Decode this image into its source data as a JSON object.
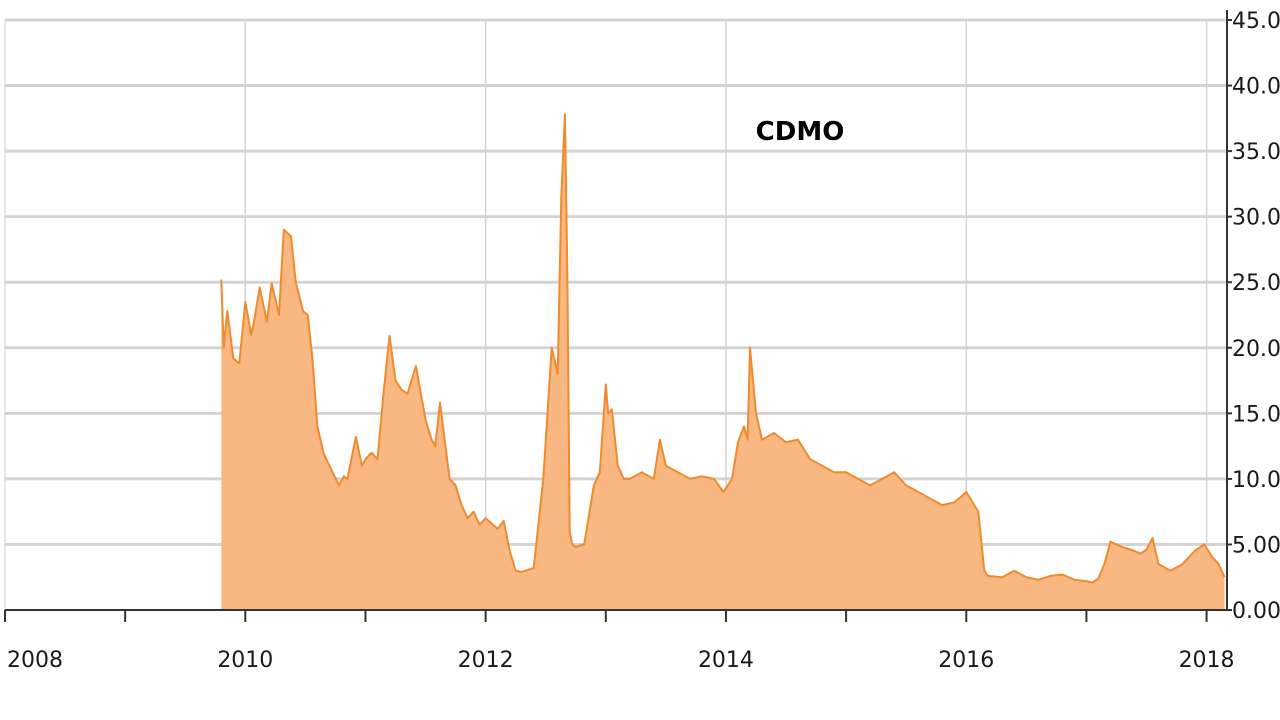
{
  "chart_data": {
    "type": "area",
    "title": "CDMO",
    "xlabel": "",
    "ylabel": "",
    "xlim": [
      2008.0,
      2018.17
    ],
    "ylim": [
      0,
      45
    ],
    "grid": true,
    "y_ticks": [
      "0.00",
      "5.00",
      "10.00",
      "15.00",
      "20.00",
      "25.00",
      "30.00",
      "35.00",
      "40.00",
      "45.00"
    ],
    "x_ticks": [
      "2008",
      "2010",
      "2012",
      "2014",
      "2016",
      "2018"
    ],
    "colors": {
      "fill": "#f9b781",
      "line": "#f08a2e",
      "grid": "#d4d4d4",
      "axis": "#333333"
    },
    "series": [
      {
        "x": [
          2009.8,
          2009.82,
          2009.85,
          2009.9,
          2009.95,
          2010.0,
          2010.05,
          2010.08,
          2010.12,
          2010.18,
          2010.22,
          2010.28,
          2010.32,
          2010.38,
          2010.42,
          2010.48,
          2010.52,
          2010.56,
          2010.6,
          2010.65,
          2010.7,
          2010.78,
          2010.82,
          2010.85,
          2010.92,
          2010.97,
          2011.0,
          2011.05,
          2011.1,
          2011.15,
          2011.2,
          2011.25,
          2011.3,
          2011.35,
          2011.42,
          2011.5,
          2011.55,
          2011.58,
          2011.62,
          2011.7,
          2011.75,
          2011.8,
          2011.85,
          2011.9,
          2011.95,
          2012.0,
          2012.1,
          2012.15,
          2012.2,
          2012.25,
          2012.3,
          2012.4,
          2012.48,
          2012.55,
          2012.6,
          2012.63,
          2012.66,
          2012.68,
          2012.7,
          2012.72,
          2012.75,
          2012.78,
          2012.82,
          2012.9,
          2012.95,
          2013.0,
          2013.02,
          2013.05,
          2013.1,
          2013.15,
          2013.2,
          2013.3,
          2013.4,
          2013.45,
          2013.5,
          2013.6,
          2013.7,
          2013.8,
          2013.9,
          2013.98,
          2014.05,
          2014.1,
          2014.15,
          2014.18,
          2014.2,
          2014.25,
          2014.3,
          2014.4,
          2014.5,
          2014.6,
          2014.7,
          2014.8,
          2014.9,
          2015.0,
          2015.1,
          2015.2,
          2015.3,
          2015.4,
          2015.5,
          2015.6,
          2015.7,
          2015.8,
          2015.9,
          2016.0,
          2016.1,
          2016.15,
          2016.18,
          2016.3,
          2016.4,
          2016.5,
          2016.6,
          2016.7,
          2016.8,
          2016.9,
          2017.0,
          2017.05,
          2017.1,
          2017.15,
          2017.2,
          2017.3,
          2017.4,
          2017.45,
          2017.5,
          2017.55,
          2017.6,
          2017.7,
          2017.8,
          2017.9,
          2017.98,
          2018.05,
          2018.1,
          2018.15
        ],
        "y": [
          25.2,
          20.0,
          22.8,
          19.2,
          18.8,
          23.5,
          21.0,
          22.4,
          24.6,
          22.0,
          24.9,
          22.5,
          29.0,
          28.5,
          25.0,
          22.8,
          22.5,
          19.0,
          14.0,
          12.0,
          11.0,
          9.5,
          10.2,
          10.0,
          13.2,
          11.0,
          11.5,
          12.0,
          11.5,
          16.5,
          20.9,
          17.5,
          16.8,
          16.5,
          18.6,
          14.5,
          13.0,
          12.5,
          15.8,
          10.0,
          9.5,
          8.0,
          7.0,
          7.5,
          6.5,
          7.0,
          6.2,
          6.8,
          4.5,
          3.0,
          2.9,
          3.2,
          10.0,
          20.0,
          18.0,
          31.5,
          37.8,
          26.0,
          6.0,
          5.0,
          4.8,
          4.9,
          5.0,
          9.5,
          10.5,
          17.2,
          15.0,
          15.3,
          11.0,
          10.0,
          10.0,
          10.5,
          10.0,
          13.0,
          11.0,
          10.5,
          10.0,
          10.2,
          10.0,
          9.0,
          10.0,
          12.8,
          14.0,
          13.0,
          20.0,
          15.0,
          13.0,
          13.5,
          12.8,
          13.0,
          11.5,
          11.0,
          10.5,
          10.5,
          10.0,
          9.5,
          10.0,
          10.5,
          9.5,
          9.0,
          8.5,
          8.0,
          8.2,
          9.0,
          7.5,
          3.0,
          2.6,
          2.5,
          3.0,
          2.5,
          2.3,
          2.6,
          2.7,
          2.3,
          2.2,
          2.1,
          2.4,
          3.5,
          5.2,
          4.8,
          4.5,
          4.3,
          4.6,
          5.5,
          3.5,
          3.0,
          3.5,
          4.5,
          5.0,
          4.0,
          3.5,
          2.5
        ]
      }
    ]
  }
}
